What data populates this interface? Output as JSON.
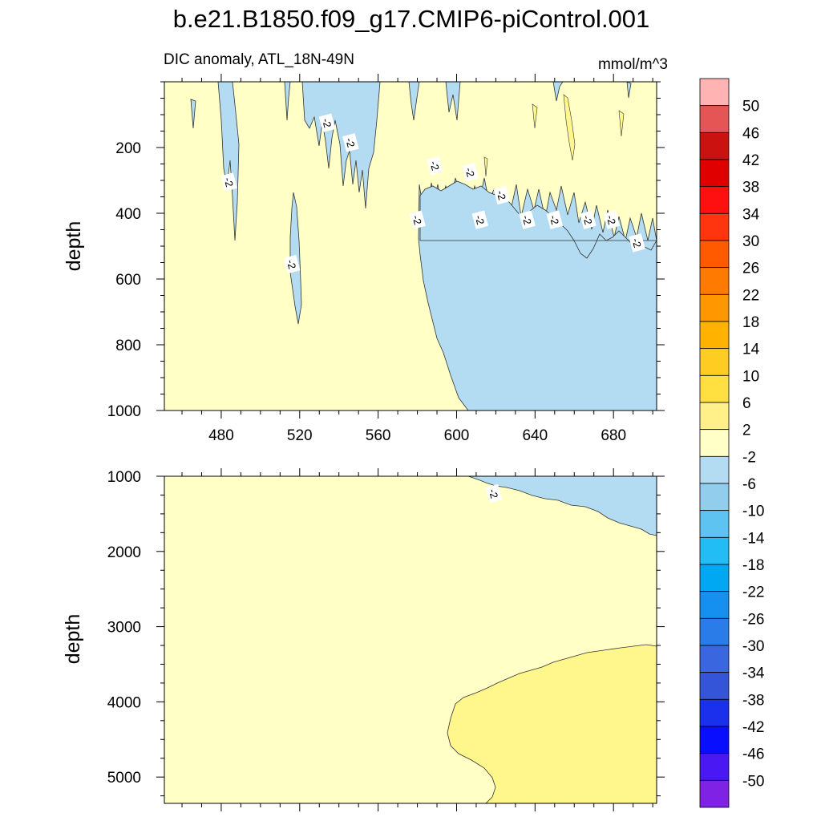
{
  "title": "b.e21.B1850.f09_g17.CMIP6-piControl.001",
  "subtitle_left": "DIC anomaly, ATL_18N-49N",
  "subtitle_right": "mmol/m^3",
  "colors": {
    "blue_light": "#b3dcf2",
    "yellow_light": "#ffffc6",
    "yellow": "#fff68c"
  },
  "chart_data": [
    {
      "type": "contour",
      "panel": "upper",
      "ylabel": "depth",
      "xlim": [
        451,
        702
      ],
      "ylim": [
        1000,
        0
      ],
      "x_ticks": [
        480,
        520,
        560,
        600,
        640,
        680
      ],
      "y_ticks": [
        200,
        400,
        600,
        800,
        1000
      ],
      "contour_labels": [
        {
          "text": "-2",
          "x": 484,
          "y": 305
        },
        {
          "text": "-2",
          "x": 534,
          "y": 125
        },
        {
          "text": "-2",
          "x": 546,
          "y": 185
        },
        {
          "text": "-2",
          "x": 516,
          "y": 555
        },
        {
          "text": "-2",
          "x": 589,
          "y": 255
        },
        {
          "text": "-2",
          "x": 580,
          "y": 420
        },
        {
          "text": "-2",
          "x": 607,
          "y": 275
        },
        {
          "text": "-2",
          "x": 612,
          "y": 420
        },
        {
          "text": "-2",
          "x": 623,
          "y": 345
        },
        {
          "text": "-2",
          "x": 636,
          "y": 420
        },
        {
          "text": "-2",
          "x": 650,
          "y": 420
        },
        {
          "text": "-2",
          "x": 667,
          "y": 420
        },
        {
          "text": "-2",
          "x": 679,
          "y": 420
        },
        {
          "text": "-2",
          "x": 692,
          "y": 490
        }
      ],
      "regions": [
        {
          "level": "-6 to -2",
          "description": "deep water east of ~580 below ~450 m, plus narrow near-surface streaks"
        },
        {
          "level": "-2 to 2",
          "description": "background, west and upper ocean"
        },
        {
          "level": "2 to 6",
          "description": "small near-surface streaks"
        }
      ]
    },
    {
      "type": "contour",
      "panel": "lower",
      "ylabel": "depth",
      "xlim": [
        451,
        702
      ],
      "ylim": [
        5350,
        1000
      ],
      "y_ticks": [
        1000,
        2000,
        3000,
        4000,
        5000
      ],
      "contour_labels": [
        {
          "text": "-2",
          "x": 619,
          "y": 1230
        }
      ],
      "regions": [
        {
          "level": "-6 to -2",
          "description": "upper-right wedge, 1000 to ~1800 m east of ~605"
        },
        {
          "level": "-2 to 2",
          "description": "background"
        },
        {
          "level": "2 to 6",
          "description": "bottom-right region below ~3300 m east of ~595"
        }
      ]
    }
  ],
  "colorbar": {
    "labels": [
      "50",
      "46",
      "42",
      "38",
      "34",
      "30",
      "26",
      "22",
      "18",
      "14",
      "10",
      "6",
      "2",
      "-2",
      "-6",
      "-10",
      "-14",
      "-18",
      "-22",
      "-26",
      "-30",
      "-34",
      "-38",
      "-42",
      "-46",
      "-50"
    ],
    "colors": [
      "#ffb3b3",
      "#e65555",
      "#cc1111",
      "#e10000",
      "#ff1010",
      "#ff3510",
      "#ff5a00",
      "#ff7a00",
      "#ff9800",
      "#ffb300",
      "#ffcc22",
      "#ffe040",
      "#fff08a",
      "#ffffc8",
      "#b3dcf2",
      "#93cdee",
      "#5fc3f2",
      "#22bdf5",
      "#00a8f4",
      "#1590f0",
      "#2a7ce8",
      "#3a66e0",
      "#3555d8",
      "#1a30ec",
      "#0a0eff",
      "#4a18f2",
      "#7f22e6"
    ]
  }
}
